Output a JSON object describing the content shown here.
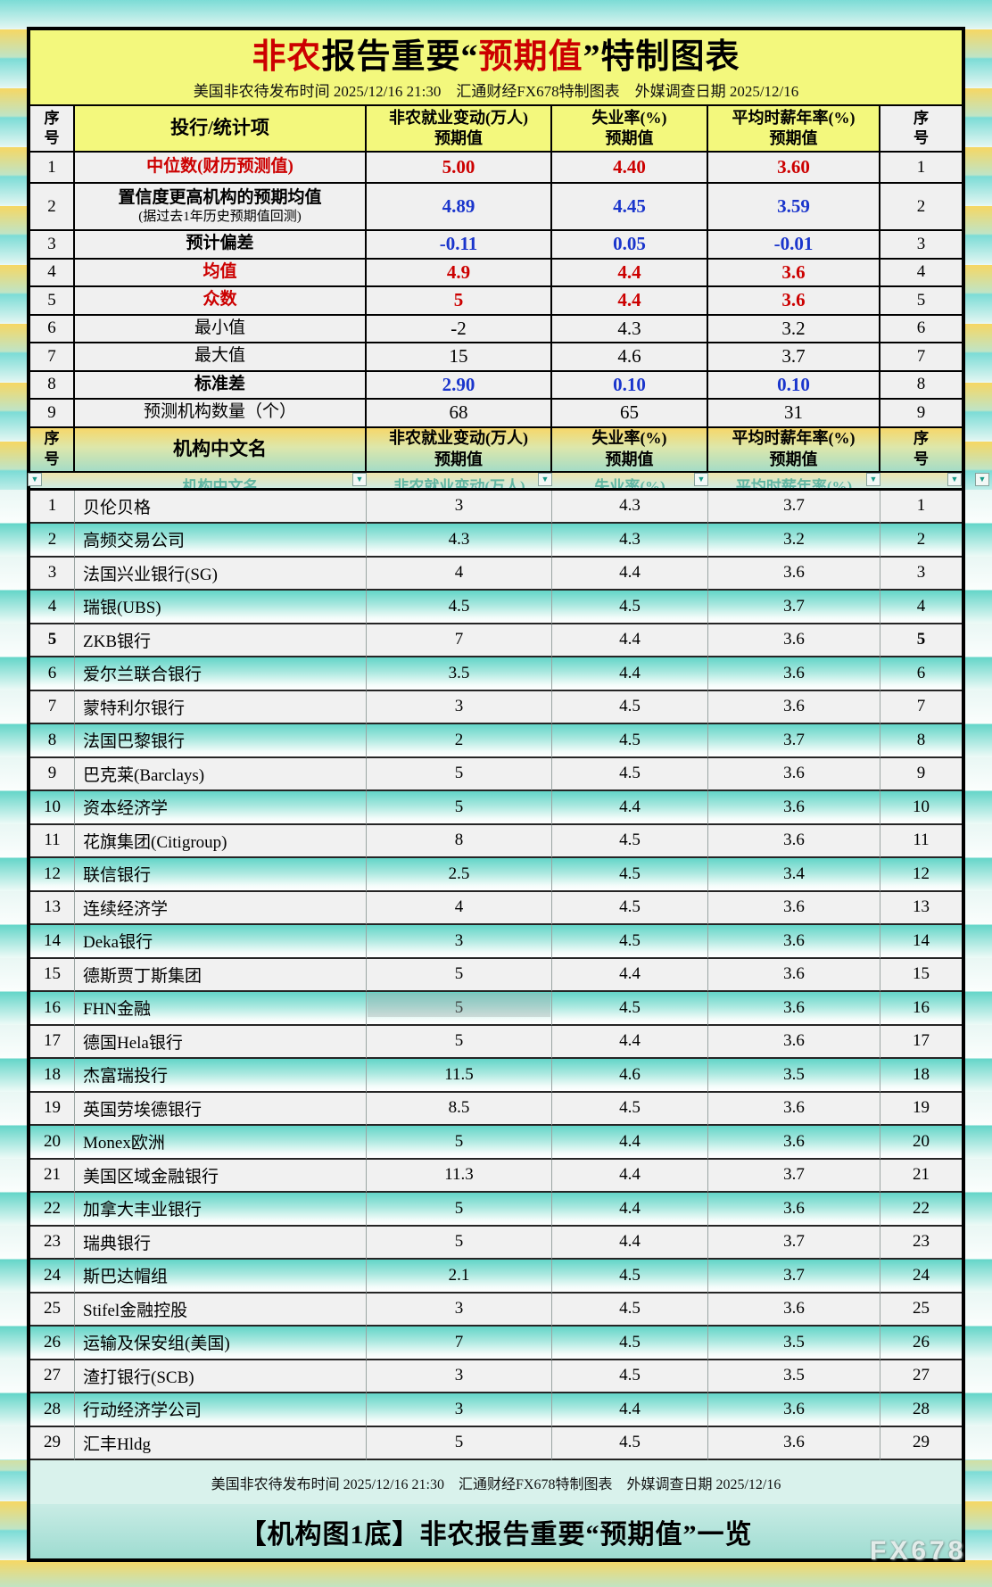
{
  "header": {
    "title": {
      "part1_red": "非农",
      "part2": "报告重要",
      "quote_open": "“",
      "part3_red": "预期值",
      "quote_close": "”",
      "part4": "特制图表"
    },
    "subtitle": "美国非农待发布时间 2025/12/16 21:30　汇通财经FX678特制图表　外媒调查日期 2025/12/16",
    "footer": "美国非农待发布时间 2025/12/16 21:30　汇通财经FX678特制图表　外媒调查日期 2025/12/16",
    "bottom_title": "【机构图1底】非农报告重要“预期值”一览",
    "watermark": "FX678"
  },
  "table_headers": {
    "stats": {
      "seq": "序\n号",
      "item": "投行/统计项",
      "nfp": "非农就业变动(万人)\n预期值",
      "unemployment": "失业率(%)\n预期值",
      "wage": "平均时薪年率(%)\n预期值",
      "seq2": "序\n号"
    },
    "institutions": {
      "seq": "序\n号",
      "name": "机构中文名",
      "nfp": "非农就业变动(万人)\n预期值",
      "unemployment": "失业率(%)\n预期值",
      "wage": "平均时薪年率(%)\n预期值",
      "seq2": "序\n号"
    }
  },
  "filter_row": {
    "labels": [
      "机构中文名",
      "非农就业变动(万人)",
      "失业率(%)",
      "平均时薪年率(%)"
    ],
    "dropdown_icon": "chevron-down-icon"
  },
  "colors": {
    "red_value": "#cc0000",
    "blue_value": "#1a35cc",
    "header_yellow": "#f3f87d",
    "row_teal": "#63d5c8",
    "row_gray": "#f1f1f1"
  },
  "chart_data": {
    "type": "table",
    "title": "非农报告重要“预期值”特制图表",
    "tables": [
      {
        "name": "statistics",
        "columns": [
          "序号",
          "投行/统计项",
          "非农就业变动(万人)预期值",
          "失业率(%)预期值",
          "平均时薪年率(%)预期值",
          "序号"
        ],
        "rows": [
          {
            "seq": "1",
            "label": "中位数(财历预测值)",
            "sub": "",
            "nfp": "5.00",
            "unemployment": "4.40",
            "wage": "3.60",
            "row_class": "h1",
            "label_class": "red b",
            "value_class": "red b"
          },
          {
            "seq": "2",
            "label": "置信度更高机构的预期均值",
            "sub": "(据过去1年历史预期值回测)",
            "nfp": "4.89",
            "unemployment": "4.45",
            "wage": "3.59",
            "row_class": "h2",
            "label_class": "b",
            "value_class": "blue b"
          },
          {
            "seq": "3",
            "label": "预计偏差",
            "sub": "",
            "nfp": "-0.11",
            "unemployment": "0.05",
            "wage": "-0.01",
            "row_class": "",
            "label_class": "b",
            "value_class": "blue b"
          },
          {
            "seq": "4",
            "label": "均值",
            "sub": "",
            "nfp": "4.9",
            "unemployment": "4.4",
            "wage": "3.6",
            "row_class": "",
            "label_class": "red b",
            "value_class": "red b"
          },
          {
            "seq": "5",
            "label": "众数",
            "sub": "",
            "nfp": "5",
            "unemployment": "4.4",
            "wage": "3.6",
            "row_class": "",
            "label_class": "red b",
            "value_class": "red b"
          },
          {
            "seq": "6",
            "label": "最小值",
            "sub": "",
            "nfp": "-2",
            "unemployment": "4.3",
            "wage": "3.2",
            "row_class": "",
            "label_class": "",
            "value_class": ""
          },
          {
            "seq": "7",
            "label": "最大值",
            "sub": "",
            "nfp": "15",
            "unemployment": "4.6",
            "wage": "3.7",
            "row_class": "",
            "label_class": "",
            "value_class": ""
          },
          {
            "seq": "8",
            "label": "标准差",
            "sub": "",
            "nfp": "2.90",
            "unemployment": "0.10",
            "wage": "0.10",
            "row_class": "",
            "label_class": "b",
            "value_class": "blue b"
          },
          {
            "seq": "9",
            "label": "预测机构数量（个）",
            "sub": "",
            "nfp": "68",
            "unemployment": "65",
            "wage": "31",
            "row_class": "",
            "label_class": "",
            "value_class": ""
          }
        ]
      },
      {
        "name": "institutions",
        "columns": [
          "序号",
          "机构中文名",
          "非农就业变动(万人)预期值",
          "失业率(%)预期值",
          "平均时薪年率(%)预期值",
          "序号"
        ],
        "rows": [
          {
            "seq": "1",
            "name": "贝伦贝格",
            "nfp": "3",
            "unemployment": "4.3",
            "wage": "3.7"
          },
          {
            "seq": "2",
            "name": "高频交易公司",
            "nfp": "4.3",
            "unemployment": "4.3",
            "wage": "3.2"
          },
          {
            "seq": "3",
            "name": "法国兴业银行(SG)",
            "nfp": "4",
            "unemployment": "4.4",
            "wage": "3.6"
          },
          {
            "seq": "4",
            "name": "瑞银(UBS)",
            "nfp": "4.5",
            "unemployment": "4.5",
            "wage": "3.7"
          },
          {
            "seq": "5",
            "name": "ZKB银行",
            "nfp": "7",
            "unemployment": "4.4",
            "wage": "3.6",
            "seq_bold": true
          },
          {
            "seq": "6",
            "name": "爱尔兰联合银行",
            "nfp": "3.5",
            "unemployment": "4.4",
            "wage": "3.6"
          },
          {
            "seq": "7",
            "name": "蒙特利尔银行",
            "nfp": "3",
            "unemployment": "4.5",
            "wage": "3.6"
          },
          {
            "seq": "8",
            "name": "法国巴黎银行",
            "nfp": "2",
            "unemployment": "4.5",
            "wage": "3.7"
          },
          {
            "seq": "9",
            "name": "巴克莱(Barclays)",
            "nfp": "5",
            "unemployment": "4.5",
            "wage": "3.6"
          },
          {
            "seq": "10",
            "name": "资本经济学",
            "nfp": "5",
            "unemployment": "4.4",
            "wage": "3.6"
          },
          {
            "seq": "11",
            "name": "花旗集团(Citigroup)",
            "nfp": "8",
            "unemployment": "4.5",
            "wage": "3.6"
          },
          {
            "seq": "12",
            "name": "联信银行",
            "nfp": "2.5",
            "unemployment": "4.5",
            "wage": "3.4"
          },
          {
            "seq": "13",
            "name": "连续经济学",
            "nfp": "4",
            "unemployment": "4.5",
            "wage": "3.6"
          },
          {
            "seq": "14",
            "name": "Deka银行",
            "nfp": "3",
            "unemployment": "4.5",
            "wage": "3.6"
          },
          {
            "seq": "15",
            "name": "德斯贾丁斯集团",
            "nfp": "5",
            "unemployment": "4.4",
            "wage": "3.6"
          },
          {
            "seq": "16",
            "name": "FHN金融",
            "nfp": "5",
            "unemployment": "4.5",
            "wage": "3.6",
            "selected_cell": "nfp"
          },
          {
            "seq": "17",
            "name": "德国Hela银行",
            "nfp": "5",
            "unemployment": "4.4",
            "wage": "3.6"
          },
          {
            "seq": "18",
            "name": "杰富瑞投行",
            "nfp": "11.5",
            "unemployment": "4.6",
            "wage": "3.5"
          },
          {
            "seq": "19",
            "name": "英国劳埃德银行",
            "nfp": "8.5",
            "unemployment": "4.5",
            "wage": "3.6"
          },
          {
            "seq": "20",
            "name": "Monex欧洲",
            "nfp": "5",
            "unemployment": "4.4",
            "wage": "3.6"
          },
          {
            "seq": "21",
            "name": "美国区域金融银行",
            "nfp": "11.3",
            "unemployment": "4.4",
            "wage": "3.7"
          },
          {
            "seq": "22",
            "name": "加拿大丰业银行",
            "nfp": "5",
            "unemployment": "4.4",
            "wage": "3.6"
          },
          {
            "seq": "23",
            "name": "瑞典银行",
            "nfp": "5",
            "unemployment": "4.4",
            "wage": "3.7"
          },
          {
            "seq": "24",
            "name": "斯巴达帽组",
            "nfp": "2.1",
            "unemployment": "4.5",
            "wage": "3.7"
          },
          {
            "seq": "25",
            "name": "Stifel金融控股",
            "nfp": "3",
            "unemployment": "4.5",
            "wage": "3.6"
          },
          {
            "seq": "26",
            "name": "运输及保安组(美国)",
            "nfp": "7",
            "unemployment": "4.5",
            "wage": "3.5"
          },
          {
            "seq": "27",
            "name": "渣打银行(SCB)",
            "nfp": "3",
            "unemployment": "4.5",
            "wage": "3.5"
          },
          {
            "seq": "28",
            "name": "行动经济学公司",
            "nfp": "3",
            "unemployment": "4.4",
            "wage": "3.6"
          },
          {
            "seq": "29",
            "name": "汇丰Hldg",
            "nfp": "5",
            "unemployment": "4.5",
            "wage": "3.6"
          }
        ]
      }
    ]
  }
}
